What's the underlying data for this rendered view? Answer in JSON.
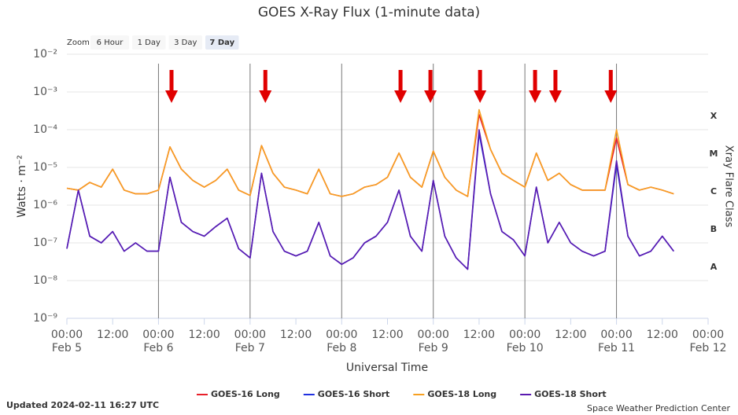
{
  "chart_data": {
    "type": "line",
    "title": "GOES X-Ray Flux (1-minute data)",
    "zoom": {
      "label": "Zoom",
      "options": [
        "6 Hour",
        "1 Day",
        "3 Day",
        "7 Day"
      ],
      "selected": "7 Day"
    },
    "ylabel": "Watts · m⁻²",
    "xlabel": "Universal Time",
    "y2label": "Xray Flare Class",
    "log_y": true,
    "grid": true,
    "day_lines": true,
    "xlim": [
      "Feb 5 00:00",
      "Feb 12 00:00"
    ],
    "xticks": [
      {
        "value": "Feb 5 00:00",
        "label": [
          "00:00",
          "Feb 5"
        ]
      },
      {
        "value": "Feb 5 12:00",
        "label": "12:00"
      },
      {
        "value": "Feb 6 00:00",
        "label": [
          "00:00",
          "Feb 6"
        ]
      },
      {
        "value": "Feb 6 12:00",
        "label": "12:00"
      },
      {
        "value": "Feb 7 00:00",
        "label": [
          "00:00",
          "Feb 7"
        ]
      },
      {
        "value": "Feb 7 12:00",
        "label": "12:00"
      },
      {
        "value": "Feb 8 00:00",
        "label": [
          "00:00",
          "Feb 8"
        ]
      },
      {
        "value": "Feb 8 12:00",
        "label": "12:00"
      },
      {
        "value": "Feb 9 00:00",
        "label": [
          "00:00",
          "Feb 9"
        ]
      },
      {
        "value": "Feb 9 12:00",
        "label": "12:00"
      },
      {
        "value": "Feb 10 00:00",
        "label": [
          "00:00",
          "Feb 10"
        ]
      },
      {
        "value": "Feb 10 12:00",
        "label": "12:00"
      },
      {
        "value": "Feb 11 00:00",
        "label": [
          "00:00",
          "Feb 11"
        ]
      },
      {
        "value": "Feb 11 12:00",
        "label": "12:00"
      },
      {
        "value": "Feb 12 00:00",
        "label": [
          "00:00",
          "Feb 12"
        ]
      }
    ],
    "ylim": [
      1e-09,
      0.01
    ],
    "yticks": [
      {
        "value": 1e-09,
        "label": "10⁻⁹"
      },
      {
        "value": 1e-08,
        "label": "10⁻⁸"
      },
      {
        "value": 1e-07,
        "label": "10⁻⁷"
      },
      {
        "value": 1e-06,
        "label": "10⁻⁶"
      },
      {
        "value": 1e-05,
        "label": "10⁻⁵"
      },
      {
        "value": 0.0001,
        "label": "10⁻⁴"
      },
      {
        "value": 0.001,
        "label": "10⁻³"
      },
      {
        "value": 0.01,
        "label": "10⁻²"
      }
    ],
    "flare_classes": [
      {
        "value": 1e-08,
        "label": "A"
      },
      {
        "value": 1e-07,
        "label": "B"
      },
      {
        "value": 1e-06,
        "label": "C"
      },
      {
        "value": 1e-05,
        "label": "M"
      },
      {
        "value": 0.0001,
        "label": "X"
      }
    ],
    "arrows": [
      "Feb 6 03:25",
      "Feb 7 04:00",
      "Feb 8 15:25",
      "Feb 8 23:15",
      "Feb 9 12:15",
      "Feb 10 02:40",
      "Feb 10 08:00",
      "Feb 10 22:30"
    ],
    "arrow_color": "#e00000",
    "x": [
      "Feb 5 00:00",
      "Feb 5 03:00",
      "Feb 5 06:00",
      "Feb 5 09:00",
      "Feb 5 12:00",
      "Feb 5 15:00",
      "Feb 5 18:00",
      "Feb 5 21:00",
      "Feb 6 00:00",
      "Feb 6 03:00",
      "Feb 6 06:00",
      "Feb 6 09:00",
      "Feb 6 12:00",
      "Feb 6 15:00",
      "Feb 6 18:00",
      "Feb 6 21:00",
      "Feb 7 00:00",
      "Feb 7 03:00",
      "Feb 7 06:00",
      "Feb 7 09:00",
      "Feb 7 12:00",
      "Feb 7 15:00",
      "Feb 7 18:00",
      "Feb 7 21:00",
      "Feb 8 00:00",
      "Feb 8 03:00",
      "Feb 8 06:00",
      "Feb 8 09:00",
      "Feb 8 12:00",
      "Feb 8 15:00",
      "Feb 8 18:00",
      "Feb 8 21:00",
      "Feb 9 00:00",
      "Feb 9 03:00",
      "Feb 9 06:00",
      "Feb 9 09:00",
      "Feb 9 12:00",
      "Feb 9 15:00",
      "Feb 9 18:00",
      "Feb 9 21:00",
      "Feb 10 00:00",
      "Feb 10 03:00",
      "Feb 10 06:00",
      "Feb 10 09:00",
      "Feb 10 12:00",
      "Feb 10 15:00",
      "Feb 10 18:00",
      "Feb 10 21:00",
      "Feb 11 00:00",
      "Feb 11 03:00",
      "Feb 11 06:00",
      "Feb 11 09:00",
      "Feb 11 12:00",
      "Feb 11 15:00"
    ],
    "series": [
      {
        "name": "GOES-16 Long",
        "color": "#e8202a",
        "values": [
          2.8e-06,
          2.5e-06,
          4e-06,
          3e-06,
          9e-06,
          2.5e-06,
          2e-06,
          2e-06,
          2.5e-06,
          3.5e-05,
          9e-06,
          4.5e-06,
          3e-06,
          4.5e-06,
          9e-06,
          2.5e-06,
          1.8e-06,
          3.8e-05,
          7e-06,
          3e-06,
          2.5e-06,
          2e-06,
          9e-06,
          2e-06,
          1.7e-06,
          2e-06,
          3e-06,
          3.5e-06,
          5.5e-06,
          2.4e-05,
          5.5e-06,
          3e-06,
          2.7e-05,
          5.5e-06,
          2.5e-06,
          1.7e-06,
          0.00025,
          3e-05,
          7e-06,
          4.5e-06,
          3e-06,
          2.4e-05,
          4.5e-06,
          7e-06,
          3.5e-06,
          2.5e-06,
          2.5e-06,
          2.5e-06,
          6e-05,
          3.5e-06,
          2.5e-06,
          3e-06,
          2.5e-06,
          2e-06
        ]
      },
      {
        "name": "GOES-16 Short",
        "color": "#2030e0",
        "values": [
          7e-08,
          2.5e-06,
          1.5e-07,
          1e-07,
          2e-07,
          6e-08,
          1e-07,
          6e-08,
          6e-08,
          5.5e-06,
          3.5e-07,
          2e-07,
          1.5e-07,
          2.7e-07,
          4.5e-07,
          7e-08,
          4e-08,
          7e-06,
          2e-07,
          6e-08,
          4.5e-08,
          6e-08,
          3.5e-07,
          4.5e-08,
          2.7e-08,
          4e-08,
          1e-07,
          1.5e-07,
          3.5e-07,
          2.5e-06,
          1.5e-07,
          6e-08,
          4.5e-06,
          1.5e-07,
          4e-08,
          2e-08,
          8e-05,
          2e-06,
          2e-07,
          1.2e-07,
          4.5e-08,
          3e-06,
          1e-07,
          3.5e-07,
          1e-07,
          6e-08,
          4.5e-08,
          6e-08,
          1.2e-05,
          1.5e-07,
          4.5e-08,
          6e-08,
          1.5e-07,
          6e-08
        ]
      },
      {
        "name": "GOES-18 Long",
        "color": "#f7a020",
        "values": [
          2.8e-06,
          2.5e-06,
          4e-06,
          3e-06,
          9e-06,
          2.5e-06,
          2e-06,
          2e-06,
          2.5e-06,
          3.5e-05,
          9e-06,
          4.5e-06,
          3e-06,
          4.5e-06,
          9e-06,
          2.5e-06,
          1.8e-06,
          3.8e-05,
          7e-06,
          3e-06,
          2.5e-06,
          2e-06,
          9e-06,
          2e-06,
          1.7e-06,
          2e-06,
          3e-06,
          3.5e-06,
          5.5e-06,
          2.4e-05,
          5.5e-06,
          3e-06,
          2.7e-05,
          5.5e-06,
          2.5e-06,
          1.7e-06,
          0.00034,
          3e-05,
          7e-06,
          4.5e-06,
          3e-06,
          2.4e-05,
          4.5e-06,
          7e-06,
          3.5e-06,
          2.5e-06,
          2.5e-06,
          2.5e-06,
          0.0001,
          3.5e-06,
          2.5e-06,
          3e-06,
          2.5e-06,
          2e-06
        ]
      },
      {
        "name": "GOES-18 Short",
        "color": "#5a1ab0",
        "values": [
          7e-08,
          2.5e-06,
          1.5e-07,
          1e-07,
          2e-07,
          6e-08,
          1e-07,
          6e-08,
          6e-08,
          5.5e-06,
          3.5e-07,
          2e-07,
          1.5e-07,
          2.7e-07,
          4.5e-07,
          7e-08,
          4e-08,
          7e-06,
          2e-07,
          6e-08,
          4.5e-08,
          6e-08,
          3.5e-07,
          4.5e-08,
          2.7e-08,
          4e-08,
          1e-07,
          1.5e-07,
          3.5e-07,
          2.5e-06,
          1.5e-07,
          6e-08,
          4.5e-06,
          1.5e-07,
          4e-08,
          2e-08,
          0.0001,
          2e-06,
          2e-07,
          1.2e-07,
          4.5e-08,
          3e-06,
          1e-07,
          3.5e-07,
          1e-07,
          6e-08,
          4.5e-08,
          6e-08,
          1.5e-05,
          1.5e-07,
          4.5e-08,
          6e-08,
          1.5e-07,
          6e-08
        ]
      }
    ],
    "updated": "Updated 2024-02-11 16:27 UTC",
    "credit": "Space Weather Prediction Center"
  }
}
